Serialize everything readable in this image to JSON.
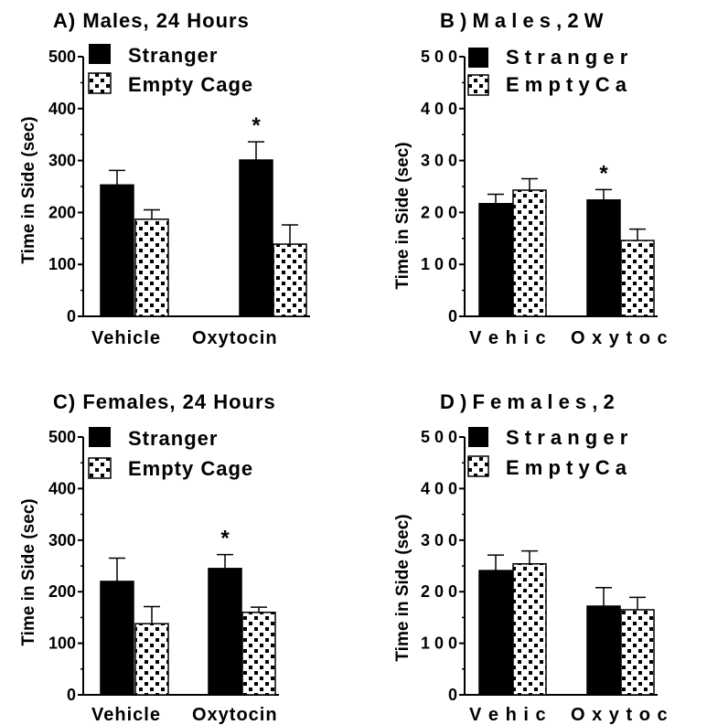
{
  "chart_data": [
    {
      "type": "bar",
      "title": "A) Males, 24 Hours",
      "ylabel": "Time in Side (sec)",
      "categories": [
        "Vehicle",
        "Oxytocin"
      ],
      "ylim": [
        0,
        500
      ],
      "yticks": [
        "0",
        "100",
        "200",
        "300",
        "400",
        "500"
      ],
      "series": [
        {
          "name": "Stranger",
          "values": [
            253,
            301
          ],
          "errors": [
            28,
            35
          ]
        },
        {
          "name": "Empty Cage",
          "values": [
            187,
            139
          ],
          "errors": [
            18,
            37
          ]
        }
      ],
      "annotations": [
        {
          "text": "*",
          "category": "Oxytocin"
        }
      ]
    },
    {
      "type": "bar",
      "title": "B ) M a l e s , 2 W",
      "ylabel": "Time in Side (sec)",
      "categories": [
        "V e h i c",
        "O x y t o c"
      ],
      "ylim": [
        0,
        500
      ],
      "yticks": [
        "0",
        "1 0 0",
        "2 0 0",
        "3 0 0",
        "4 0 0",
        "5 0 0"
      ],
      "series": [
        {
          "name": "S t r a n g e r",
          "values": [
            217,
            224
          ],
          "errors": [
            18,
            20
          ]
        },
        {
          "name": "E m p t y C a",
          "values": [
            243,
            146
          ],
          "errors": [
            22,
            22
          ]
        }
      ],
      "annotations": [
        {
          "text": "*",
          "category": "O x y t o c"
        }
      ]
    },
    {
      "type": "bar",
      "title": "C) Females, 24 Hours",
      "ylabel": "Time in Side (sec)",
      "categories": [
        "Vehicle",
        "Oxytocin"
      ],
      "ylim": [
        0,
        500
      ],
      "yticks": [
        "0",
        "100",
        "200",
        "300",
        "400",
        "500"
      ],
      "series": [
        {
          "name": "Stranger",
          "values": [
            220,
            245
          ],
          "errors": [
            45,
            27
          ]
        },
        {
          "name": "Empty Cage",
          "values": [
            138,
            160
          ],
          "errors": [
            33,
            10
          ]
        }
      ],
      "annotations": [
        {
          "text": "*",
          "category": "Oxytocin"
        }
      ]
    },
    {
      "type": "bar",
      "title": "D ) F e m a l e s , 2",
      "ylabel": "Time in Side (sec)",
      "categories": [
        "V e h i c",
        "O x y t o c"
      ],
      "ylim": [
        0,
        500
      ],
      "yticks": [
        "0",
        "1 0 0",
        "2 0 0",
        "3 0 0",
        "4 0 0",
        "5 0 0"
      ],
      "series": [
        {
          "name": "S t r a n g e r",
          "values": [
            241,
            172
          ],
          "errors": [
            30,
            36
          ]
        },
        {
          "name": "E m p t y C a",
          "values": [
            254,
            165
          ],
          "errors": [
            25,
            24
          ]
        }
      ],
      "annotations": []
    }
  ]
}
